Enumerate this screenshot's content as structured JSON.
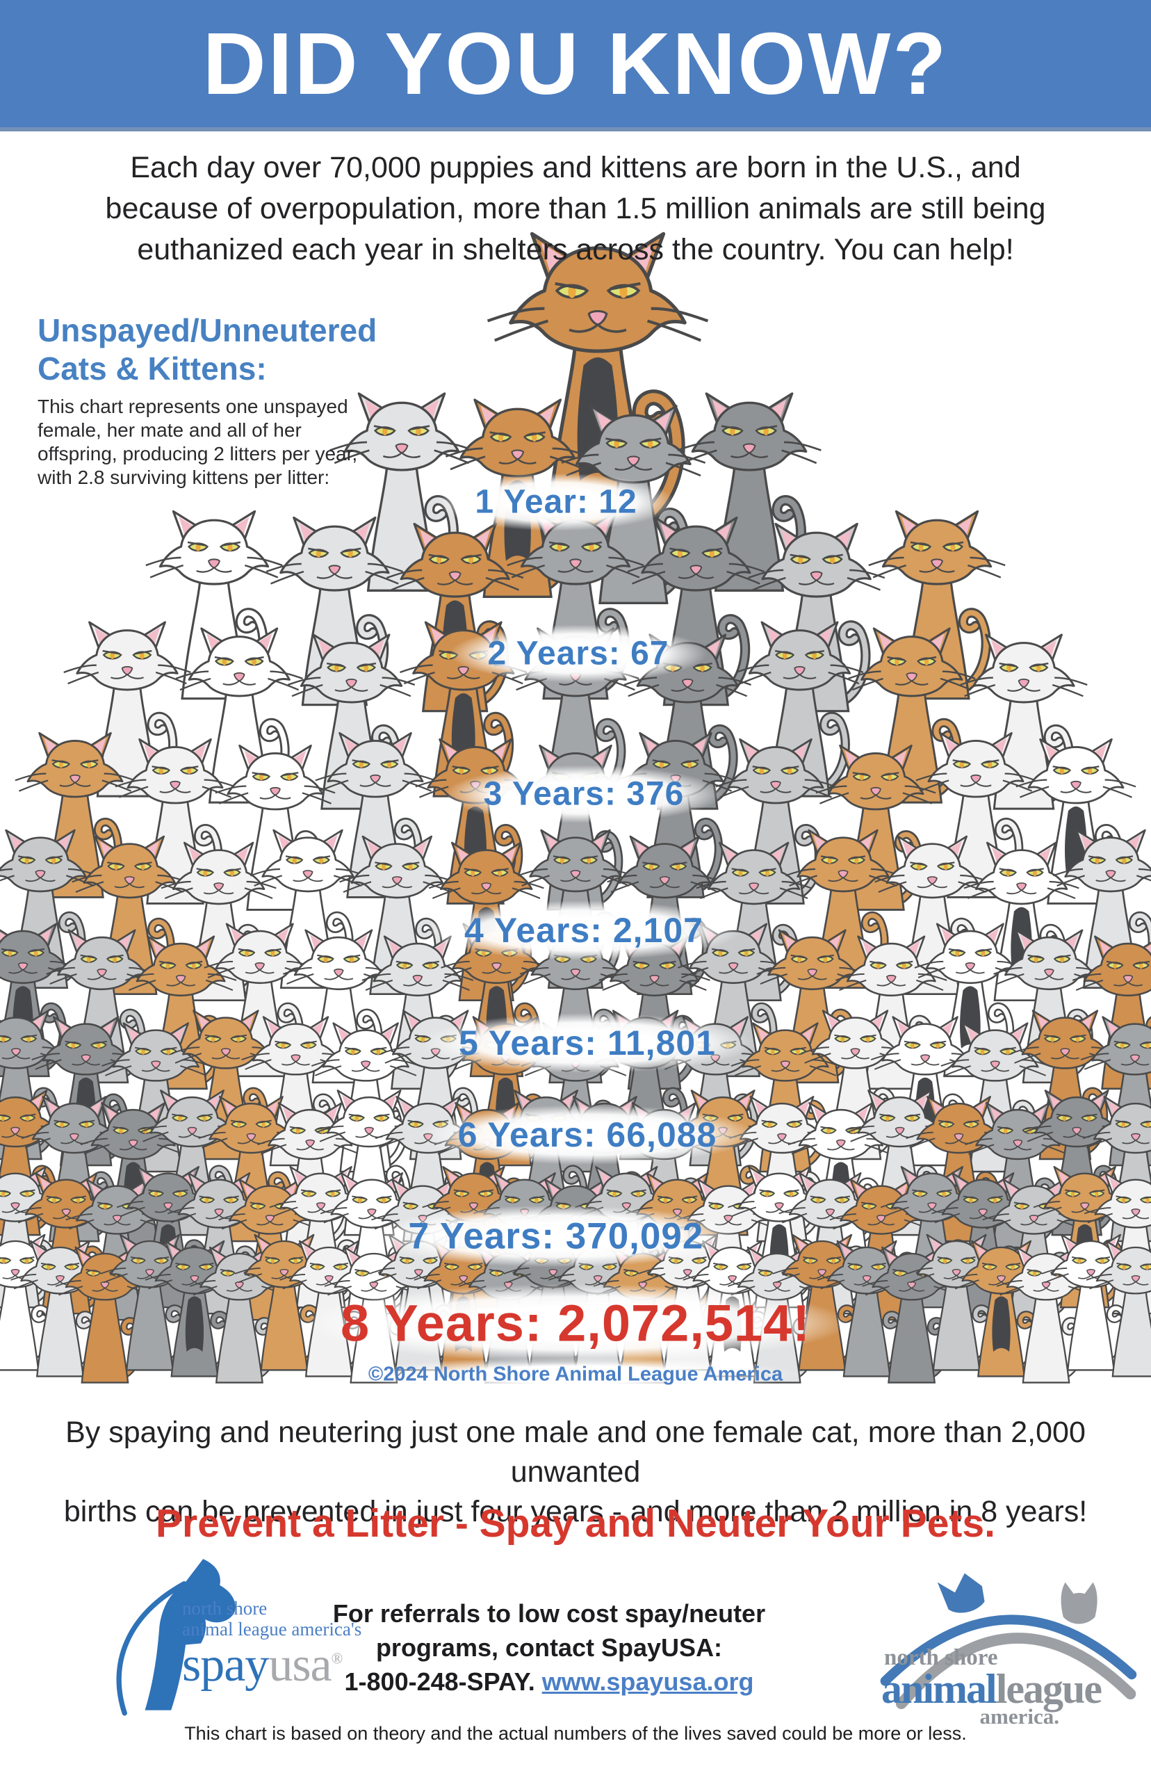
{
  "banner": {
    "title": "DID YOU KNOW?"
  },
  "intro": {
    "lines": [
      "Each day over 70,000 puppies and kittens are born in the U.S., and",
      "because of overpopulation, more than 1.5 million animals are still being",
      "euthanized each year in shelters across the country. You can help!"
    ]
  },
  "chart": {
    "heading_line1": "Unspayed/Unneutered",
    "heading_line2": "Cats & Kittens:",
    "description": "This chart represents one unspayed female, her mate and all of her offspring, producing 2 litters per year, with 2.8 surviving kittens per litter:",
    "copyright": "©2024 North Shore Animal League America"
  },
  "chart_data": {
    "type": "table",
    "subtype": "pictogram_pyramid",
    "title": "Unspayed/Unneutered Cats & Kittens",
    "categories": [
      "1 Year",
      "2 Years",
      "3 Years",
      "4 Years",
      "5 Years",
      "6 Years",
      "7 Years",
      "8 Years"
    ],
    "values": [
      12,
      67,
      376,
      2107,
      11801,
      66088,
      370092,
      2072514
    ],
    "value_labels": [
      "1 Year: 12",
      "2 Years: 67",
      "3 Years: 376",
      "4 Years: 2,107",
      "5 Years: 11,801",
      "6 Years: 66,088",
      "7 Years: 370,092",
      "8 Years: 2,072,514!"
    ],
    "assumptions": "One unspayed female, her mate and all of her offspring, producing 2 litters per year, with 2.8 surviving kittens per litter",
    "label_color": "#3f7dc3",
    "highlight_color_last": "#d6382e"
  },
  "outro": {
    "lines": [
      "By spaying and neutering just one male and one female cat, more than 2,000 unwanted",
      "births can be prevented in just four years - and more than 2 million in 8 years!"
    ],
    "cta": "Prevent a Litter - Spay and Neuter Your Pets."
  },
  "footer": {
    "spayusa": {
      "line1": "north shore",
      "line2": "animal league america's",
      "word_spay": "spay",
      "word_usa": "usa",
      "registered": "®"
    },
    "contact": {
      "line1": "For referrals to low cost spay/neuter",
      "line2": "programs, contact SpayUSA:",
      "phone": "1-800-248-SPAY.",
      "link": "www.spayusa.org"
    },
    "nsala": {
      "line1": "north shore",
      "word_animal": "animal",
      "word_league": "league",
      "line3": "america."
    },
    "disclaimer": "This chart is based on theory and the actual numbers of the lives saved could be more or less."
  },
  "colors": {
    "banner_blue": "#4d7ec0",
    "heading_blue": "#4781c2",
    "label_blue": "#3f7dc3",
    "copyright_blue": "#4a7fc6",
    "red": "#d6382e",
    "logo_blue": "#2e72b8",
    "logo_gray": "#9ca0a4",
    "text_dark": "#232225"
  }
}
